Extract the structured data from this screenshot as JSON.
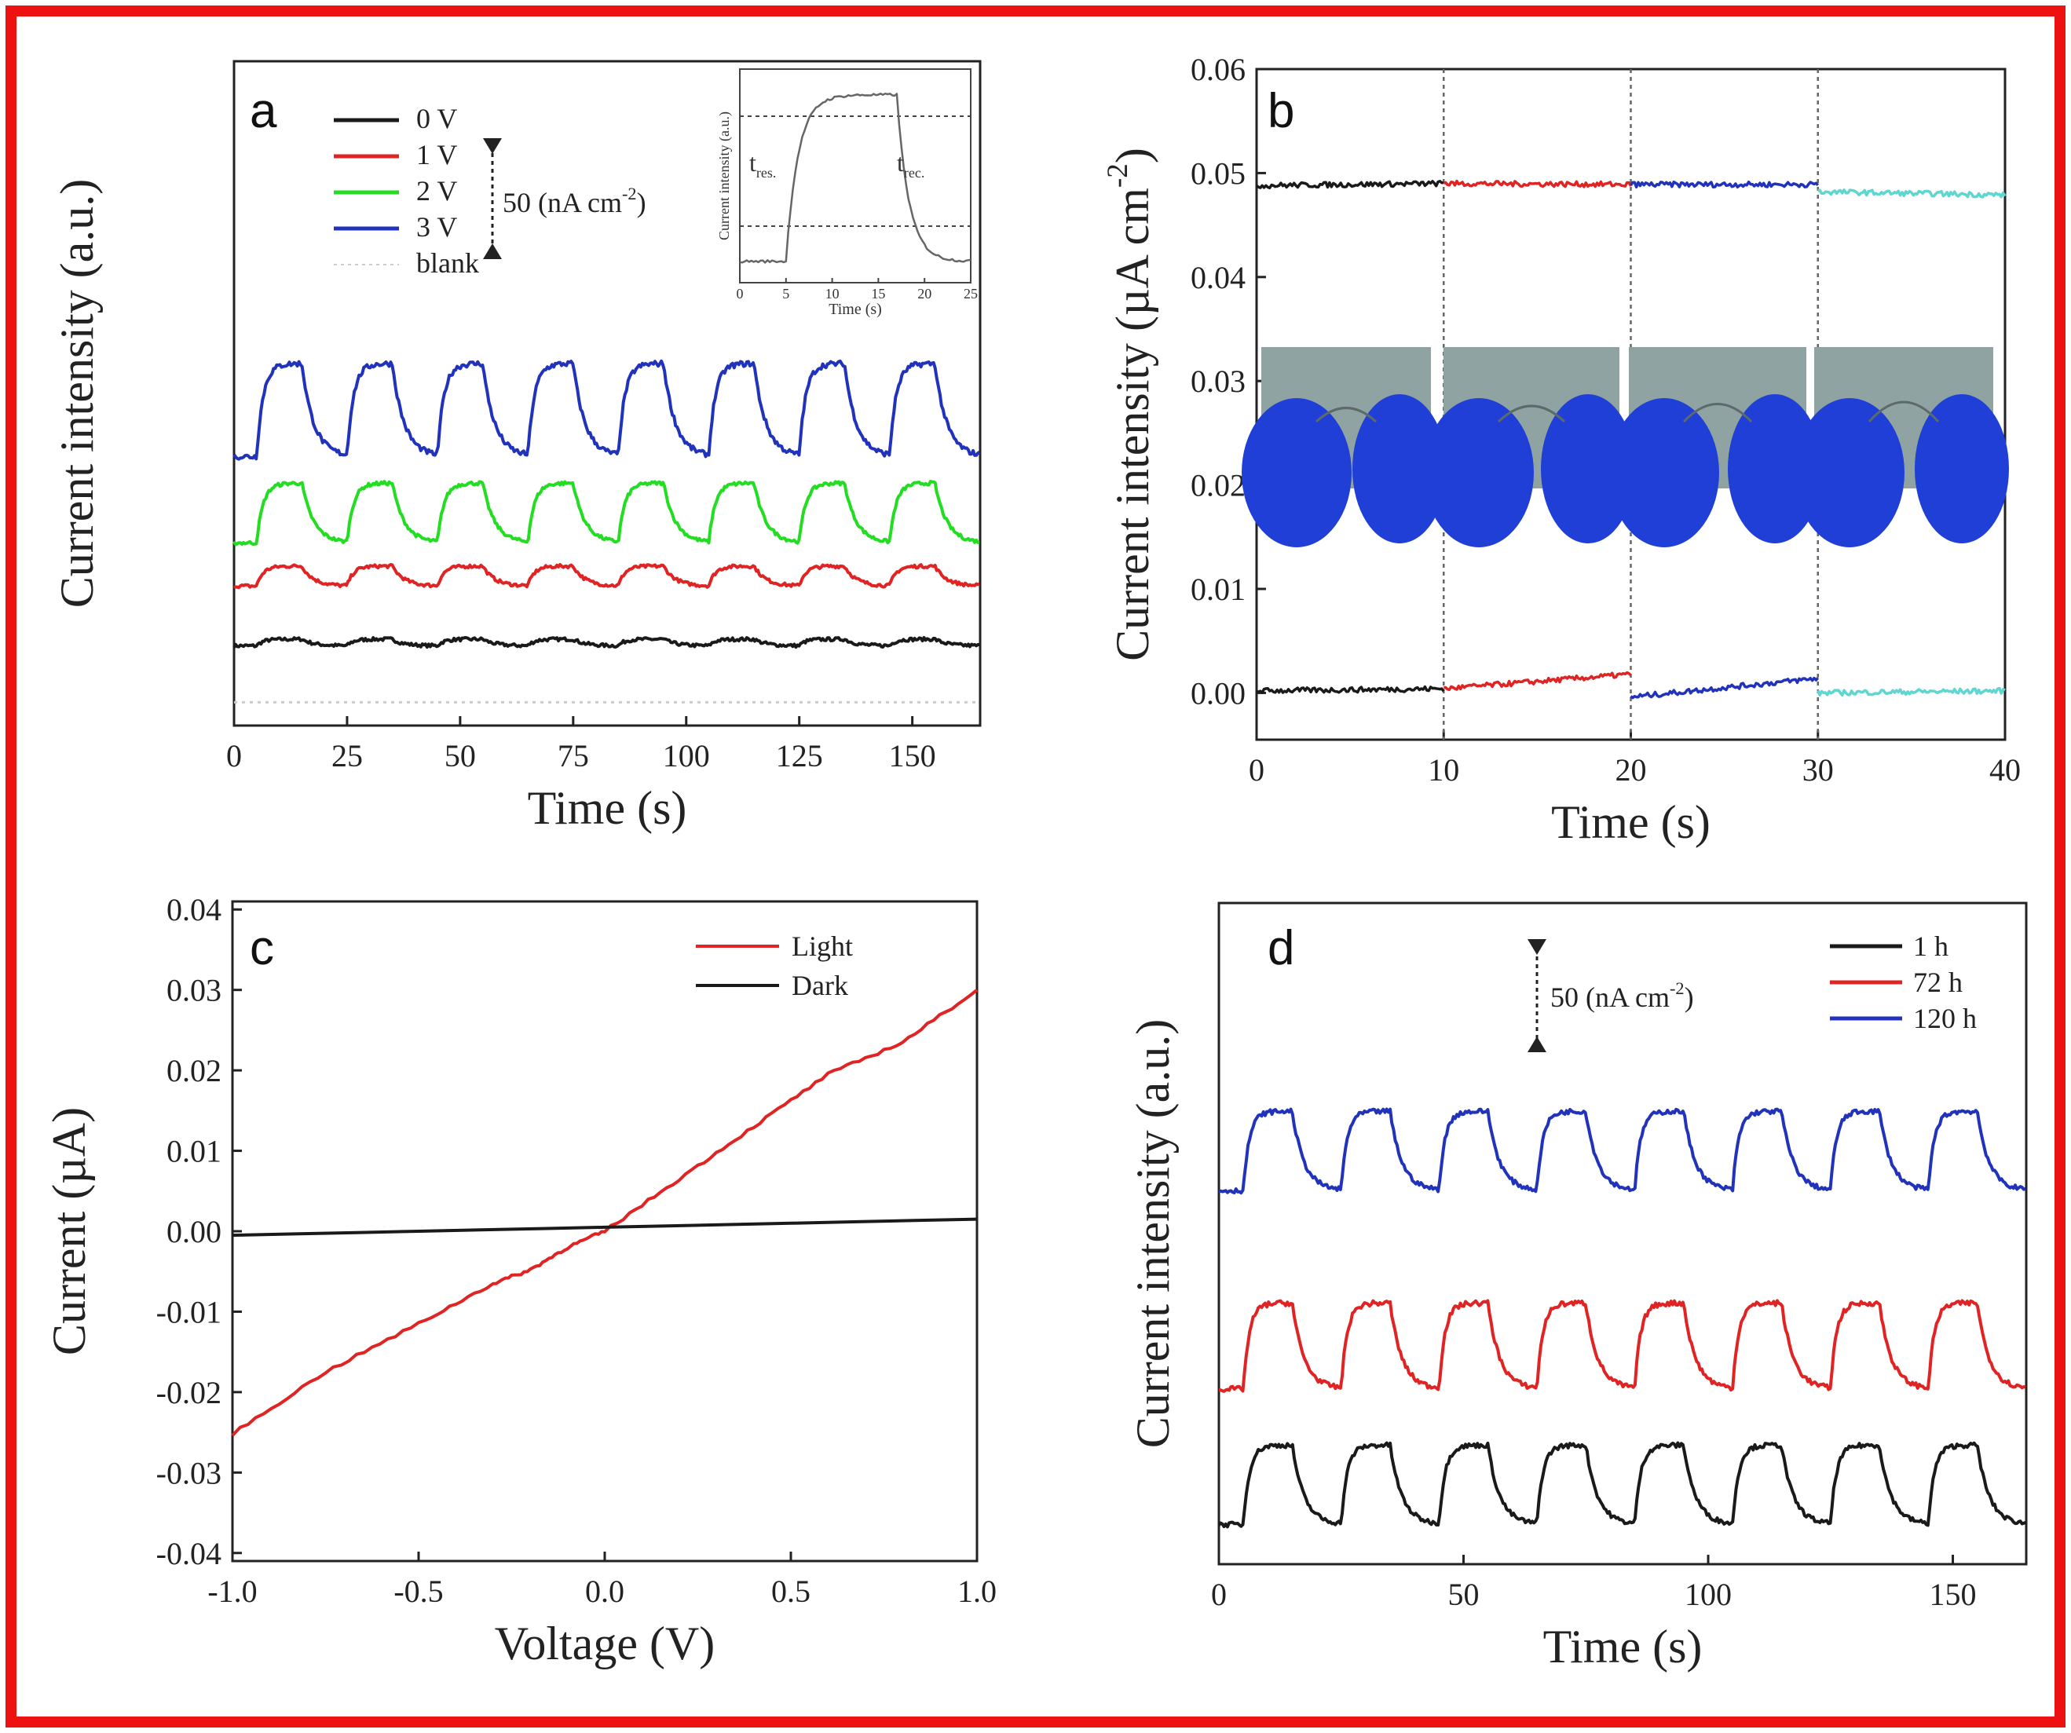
{
  "colors": {
    "frame": "#ee1111",
    "black": "#1a1a1a",
    "red": "#e02424",
    "green": "#22dd22",
    "blue": "#2233bb",
    "cyan": "#5fd6cf",
    "blank": "#cccccc",
    "gray": "#777777"
  },
  "chart_data": [
    {
      "id": "a",
      "type": "line",
      "panel_label": "a",
      "xlabel": "Time (s)",
      "ylabel": "Current intensity (a.u.)",
      "xlim": [
        0,
        165
      ],
      "ylim": [
        0,
        100
      ],
      "x_ticks": [
        "0",
        "25",
        "50",
        "75",
        "100",
        "125",
        "150"
      ],
      "legend": [
        {
          "name": "0 V",
          "color": "black"
        },
        {
          "name": "1 V",
          "color": "red"
        },
        {
          "name": "2 V",
          "color": "green"
        },
        {
          "name": "3 V",
          "color": "blue"
        },
        {
          "name": "blank",
          "color": "blank"
        }
      ],
      "scale_bar": "50 (nA cm",
      "scale_bar_sup": "-2",
      "scale_bar_end": ")",
      "period_s": 20,
      "pulses": 8,
      "series": [
        {
          "name": "0 V",
          "base": 12,
          "amp": 1,
          "color": "black"
        },
        {
          "name": "1 V",
          "base": 21,
          "amp": 3,
          "color": "red"
        },
        {
          "name": "2 V",
          "base": 27.5,
          "amp": 9,
          "color": "green"
        },
        {
          "name": "3 V",
          "base": 40.5,
          "amp": 14,
          "color": "blue"
        },
        {
          "name": "blank",
          "base": 3.5,
          "amp": 0,
          "color": "blank"
        }
      ],
      "inset": {
        "xlabel": "Time (s)",
        "ylabel": "Current intensity (a.u.)",
        "x_ticks": [
          "0",
          "5",
          "10",
          "15",
          "20",
          "25"
        ],
        "xlim": [
          0,
          25
        ],
        "t_res_label": "t",
        "t_res_sub": "res.",
        "t_rec_label": "t",
        "t_rec_sub": "rec."
      }
    },
    {
      "id": "b",
      "type": "line",
      "panel_label": "b",
      "xlabel": "Time (s)",
      "ylabel": "Current intensity (µA cm",
      "ylabel_sup": "-2",
      "ylabel_end": ")",
      "xlim": [
        0,
        40
      ],
      "ylim": [
        -0.0045,
        0.06
      ],
      "x_ticks": [
        "0",
        "10",
        "20",
        "30",
        "40"
      ],
      "y_ticks": [
        "0.00",
        "0.01",
        "0.02",
        "0.03",
        "0.04",
        "0.05",
        "0.06"
      ],
      "dividers": [
        10,
        20,
        30
      ],
      "segments": [
        {
          "x": [
            0,
            10
          ],
          "high": [
            0.0488,
            0.049
          ],
          "low": [
            0.0002,
            0.0004
          ],
          "color": "black"
        },
        {
          "x": [
            10,
            20
          ],
          "high": [
            0.049,
            0.0489
          ],
          "low": [
            0.0004,
            0.0018
          ],
          "color": "red"
        },
        {
          "x": [
            20,
            30
          ],
          "high": [
            0.0489,
            0.0489
          ],
          "low": [
            -0.0004,
            0.0014
          ],
          "color": "blue"
        },
        {
          "x": [
            30,
            40
          ],
          "high": [
            0.0482,
            0.0479
          ],
          "low": [
            0.0,
            0.0002
          ],
          "color": "cyan"
        }
      ]
    },
    {
      "id": "c",
      "type": "line",
      "panel_label": "c",
      "xlabel": "Voltage (V)",
      "ylabel": "Current (µA)",
      "xlim": [
        -1.0,
        1.0
      ],
      "ylim": [
        -0.041,
        0.041
      ],
      "x_ticks": [
        "-1.0",
        "-0.5",
        "0.0",
        "0.5",
        "1.0"
      ],
      "y_ticks": [
        "-0.04",
        "-0.03",
        "-0.02",
        "-0.01",
        "0.00",
        "0.01",
        "0.02",
        "0.03",
        "0.04"
      ],
      "legend": [
        {
          "name": "Light",
          "color": "red"
        },
        {
          "name": "Dark",
          "color": "black"
        }
      ],
      "series": [
        {
          "name": "Light",
          "color": "red",
          "x": [
            -1.0,
            -0.75,
            -0.5,
            -0.3,
            -0.2,
            -0.1,
            0.0,
            0.2,
            0.4,
            0.6,
            0.8,
            1.0
          ],
          "y": [
            -0.0252,
            -0.0175,
            -0.0115,
            -0.0065,
            -0.0048,
            -0.002,
            0.0,
            0.0065,
            0.013,
            0.0195,
            0.0235,
            0.03
          ]
        },
        {
          "name": "Dark",
          "color": "black",
          "x": [
            -1.0,
            1.0
          ],
          "y": [
            -0.0005,
            0.0015
          ]
        }
      ]
    },
    {
      "id": "d",
      "type": "line",
      "panel_label": "d",
      "xlabel": "Time (s)",
      "ylabel": "Current intensity (a.u.)",
      "xlim": [
        0,
        165
      ],
      "ylim": [
        0,
        100
      ],
      "x_ticks": [
        "0",
        "50",
        "100",
        "150"
      ],
      "legend": [
        {
          "name": "1 h",
          "color": "black"
        },
        {
          "name": "72 h",
          "color": "red"
        },
        {
          "name": "120 h",
          "color": "blue"
        }
      ],
      "scale_bar": "50 (nA cm",
      "scale_bar_sup": "-2",
      "scale_bar_end": ")",
      "period_s": 20,
      "pulses": 8,
      "series": [
        {
          "name": "1 h",
          "base": 6,
          "amp": 12,
          "color": "black"
        },
        {
          "name": "72 h",
          "base": 26.5,
          "amp": 13,
          "color": "red"
        },
        {
          "name": "120 h",
          "base": 56.5,
          "amp": 12,
          "color": "blue"
        }
      ]
    }
  ]
}
